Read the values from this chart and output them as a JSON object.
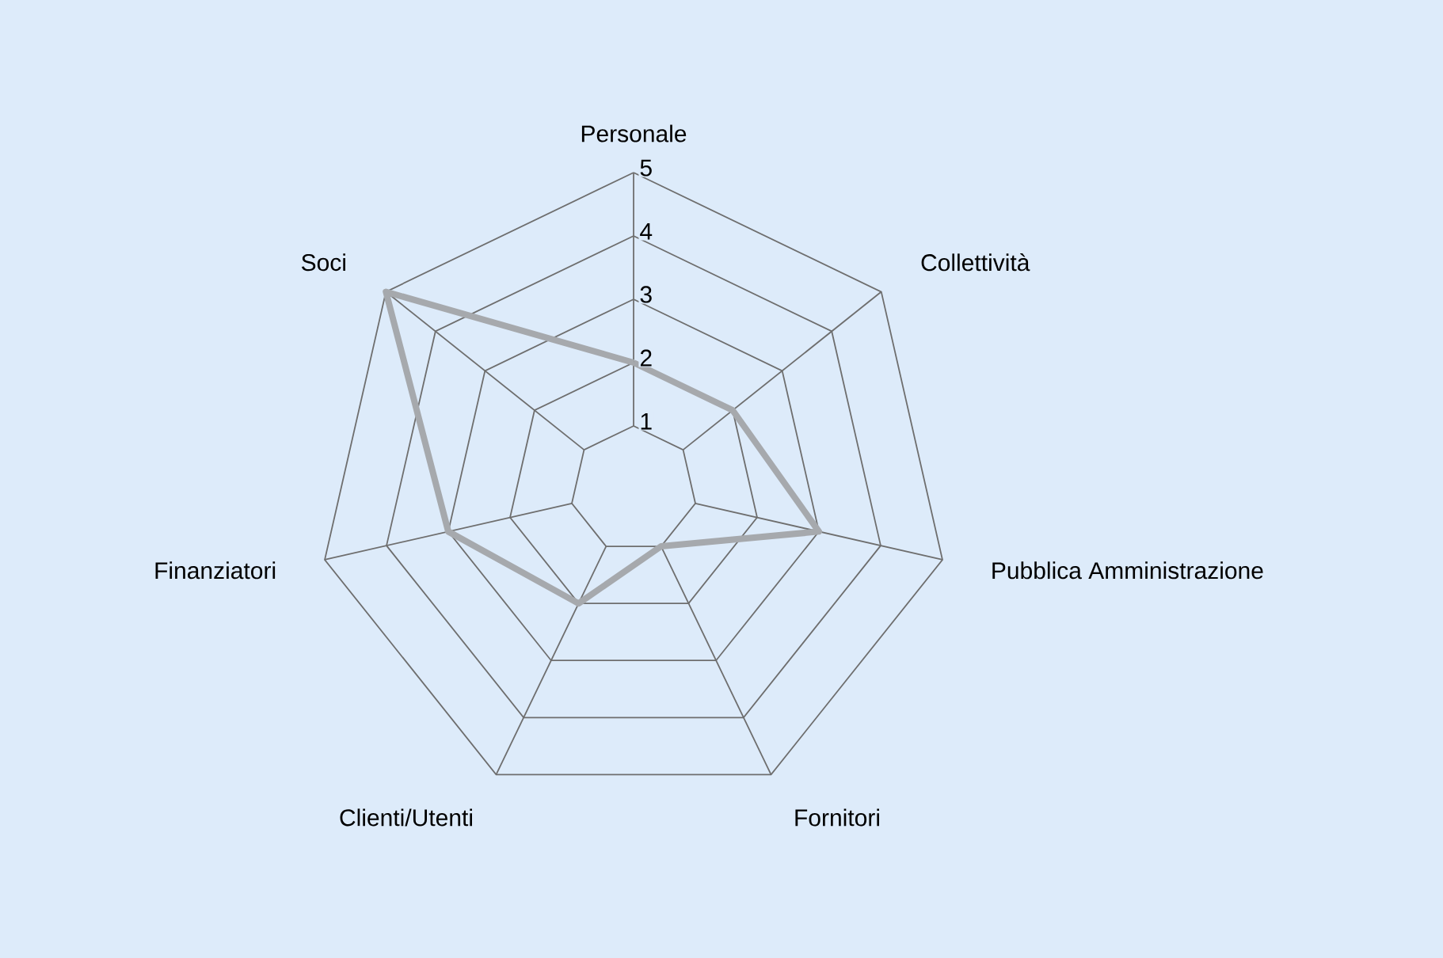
{
  "chart_data": {
    "type": "radar",
    "categories": [
      "Personale",
      "Collettività",
      "Pubblica Amministrazione",
      "Fornitori",
      "Clienti/Utenti",
      "Finanziatori",
      "Soci"
    ],
    "series": [
      {
        "color": "#a6a9ad",
        "values": [
          2,
          2,
          3,
          1,
          2,
          3,
          5
        ]
      }
    ],
    "ylim": [
      0,
      5
    ],
    "yticks": [
      1,
      2,
      3,
      4,
      5
    ],
    "grid": true
  }
}
